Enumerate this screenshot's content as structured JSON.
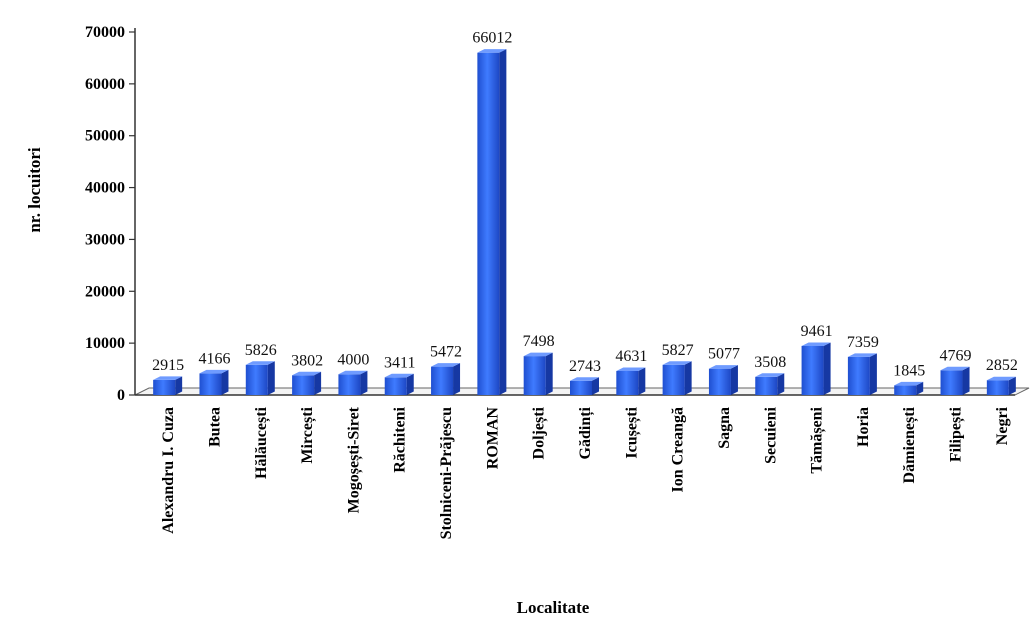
{
  "chart_data": {
    "type": "bar",
    "title": "",
    "xlabel": "Localitate",
    "ylabel": "nr. locuitori",
    "ylim": [
      0,
      70000
    ],
    "yticks": [
      0,
      10000,
      20000,
      30000,
      40000,
      50000,
      60000,
      70000
    ],
    "grid": false,
    "legend": "none",
    "bar_color": "#2a63e6",
    "categories": [
      "Alexandru I. Cuza",
      "Butea",
      "Hălăucești",
      "Mircești",
      "Mogoșești-Siret",
      "Răchiteni",
      "Stolniceni-Prăjescu",
      "ROMAN",
      "Doljești",
      "Gădinți",
      "Icușești",
      "Ion Creangă",
      "Sagna",
      "Secuieni",
      "Tămășeni",
      "Horia",
      "Dămienești",
      "Filipești",
      "Negri"
    ],
    "values": [
      2915,
      4166,
      5826,
      3802,
      4000,
      3411,
      5472,
      66012,
      7498,
      2743,
      4631,
      5827,
      5077,
      3508,
      9461,
      7359,
      1845,
      4769,
      2852
    ],
    "data_labels": [
      "2915",
      "4166",
      "5826",
      "3802",
      "4000",
      "3411",
      "5472",
      "66012",
      "7498",
      "2743",
      "4631",
      "5827",
      "5077",
      "3508",
      "9461",
      "7359",
      "1845",
      "4769",
      "2852"
    ]
  }
}
